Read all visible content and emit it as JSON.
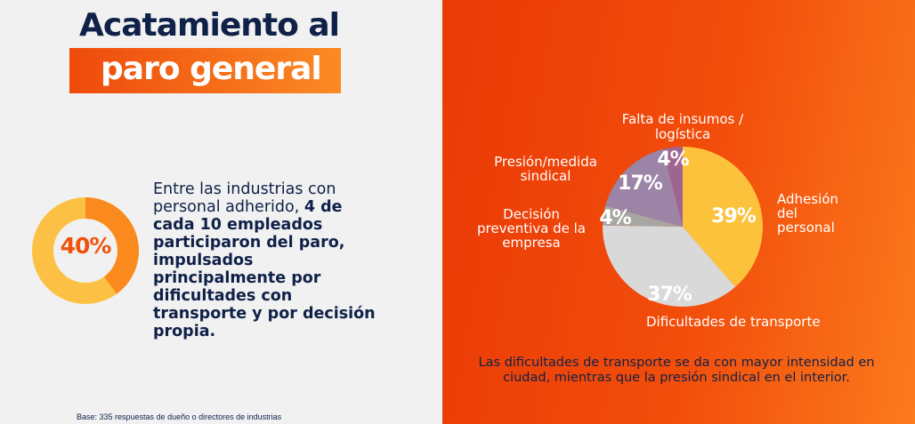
{
  "title": {
    "line1": "Acatamiento al",
    "line2": "paro general"
  },
  "highlight": {
    "value": 40,
    "label": "40%",
    "text_normal": "Entre las industrias con personal adherido, ",
    "text_bold": "4 de cada 10 empleados participaron del paro, impulsados principalmente por dificultades con transporte y por decisión propia."
  },
  "base_note": "Base: 335 respuestas de dueño o directores de industrias",
  "footnote": "Las dificultades de transporte se da con mayor intensidad en ciudad, mientras que la presión sindical en el interior.",
  "colors": {
    "navy": "#0f2148",
    "orange": "#f0520d",
    "donut_fill": "#fb8a1e",
    "donut_track": "#fcc144"
  },
  "chart_data": {
    "type": "pie",
    "slices": [
      {
        "category": "Adhesión del personal",
        "value": 39,
        "label": "39%",
        "color": "#fcc23c",
        "lines": [
          "Adhesión",
          "del",
          "personal"
        ]
      },
      {
        "category": "Dificultades de transporte",
        "value": 37,
        "label": "37%",
        "color": "#d9d9d9",
        "lines": [
          "Dificultades de transporte"
        ]
      },
      {
        "category": "Decisión preventiva de la empresa",
        "value": 4,
        "label": "4%",
        "color": "#a8a6a3",
        "lines": [
          "Decisión",
          "preventiva de la",
          "empresa"
        ]
      },
      {
        "category": "Presión/medida sindical",
        "value": 17,
        "label": "17%",
        "color": "#9b84a6",
        "lines": [
          "Presión/medida",
          "sindical"
        ]
      },
      {
        "category": "Falta de insumos / logística",
        "value": 4,
        "label": "4%",
        "color": "#a0658f",
        "lines": [
          "Falta de insumos /",
          "logística"
        ]
      }
    ]
  }
}
